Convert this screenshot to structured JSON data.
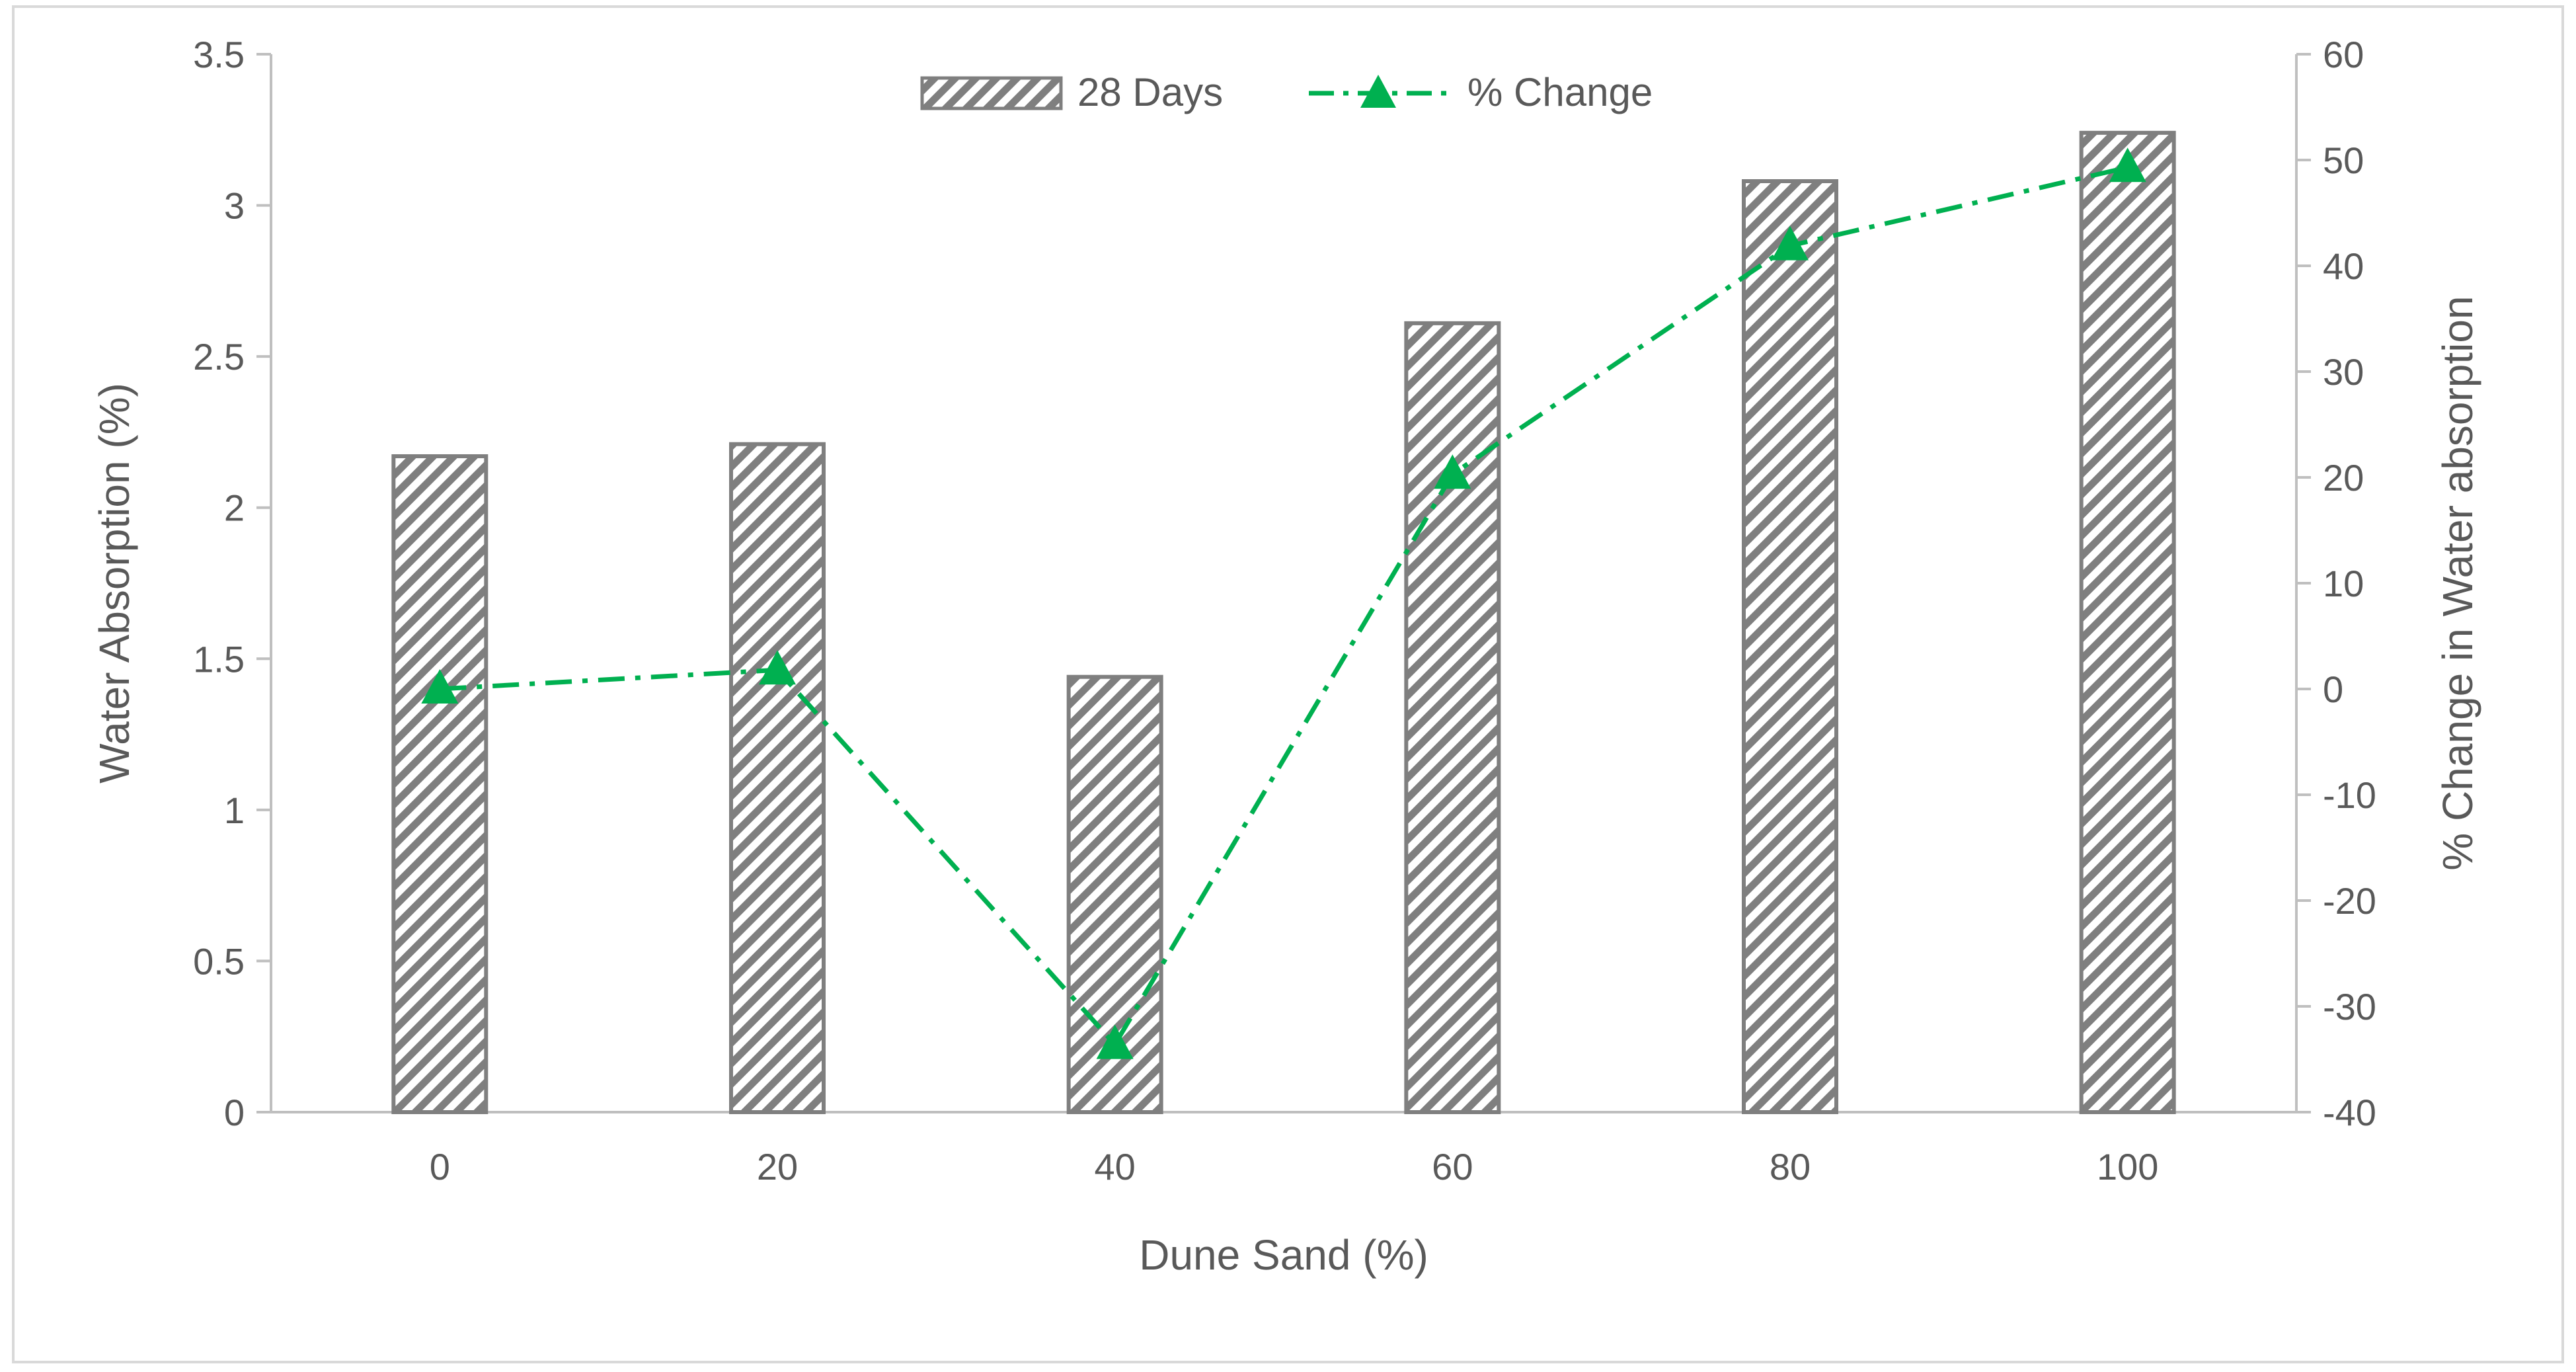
{
  "chart_data": {
    "type": "bar",
    "title": "",
    "xlabel": "Dune Sand (%)",
    "ylabel": "Water Absorption (%)",
    "y2label": "% Change in Water absorption",
    "categories": [
      "0",
      "20",
      "40",
      "60",
      "80",
      "100"
    ],
    "ylim": [
      0,
      3.5
    ],
    "yticks": [
      "0",
      "0.5",
      "1",
      "1.5",
      "2",
      "2.5",
      "3",
      "3.5"
    ],
    "y2lim": [
      -40,
      60
    ],
    "y2ticks": [
      "-40",
      "-30",
      "-20",
      "-10",
      "0",
      "10",
      "20",
      "30",
      "40",
      "50",
      "60"
    ],
    "grid": false,
    "legend_position": "top-center",
    "series": [
      {
        "name": "28 Days",
        "type": "bar",
        "axis": "left",
        "color": "#7f7f7f",
        "values": [
          2.17,
          2.21,
          1.44,
          2.61,
          3.08,
          3.24
        ]
      },
      {
        "name": "% Change",
        "type": "line",
        "axis": "right",
        "color": "#00b050",
        "marker": "triangle",
        "style": "dash-dot",
        "values": [
          0,
          1.8,
          -33.6,
          20.3,
          41.9,
          49.3
        ]
      }
    ]
  }
}
